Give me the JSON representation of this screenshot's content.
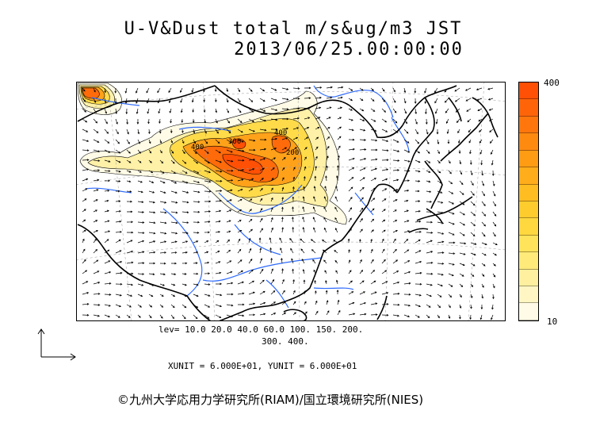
{
  "title": {
    "line1": "U-V&Dust total m/s&ug/m3 JST",
    "line2": "2013/06/25.00:00:00"
  },
  "colorbar": {
    "max_label": "400",
    "min_label": "10",
    "colors": [
      "#fffbe6",
      "#fff6c4",
      "#fff09f",
      "#ffea7a",
      "#ffe35a",
      "#ffd83f",
      "#ffcc2e",
      "#ffbd22",
      "#ffad1a",
      "#ff9c14",
      "#ff8a10",
      "#ff770c",
      "#ff6409",
      "#ff5005"
    ]
  },
  "legend": {
    "levels_line1": "lev= 10.0 20.0 40.0 60.0 100. 150. 200.",
    "levels_line2": "300. 400.",
    "units_line": "XUNIT = 6.000E+01, YUNIT = 6.000E+01"
  },
  "map": {
    "contour_labels": [
      "400",
      "400",
      "300",
      "200"
    ],
    "coast_color": "#000000",
    "river_color": "#2f6bff"
  },
  "credit": "©九州大学応用力学研究所(RIAM)/国立環境研究所(NIES)"
}
